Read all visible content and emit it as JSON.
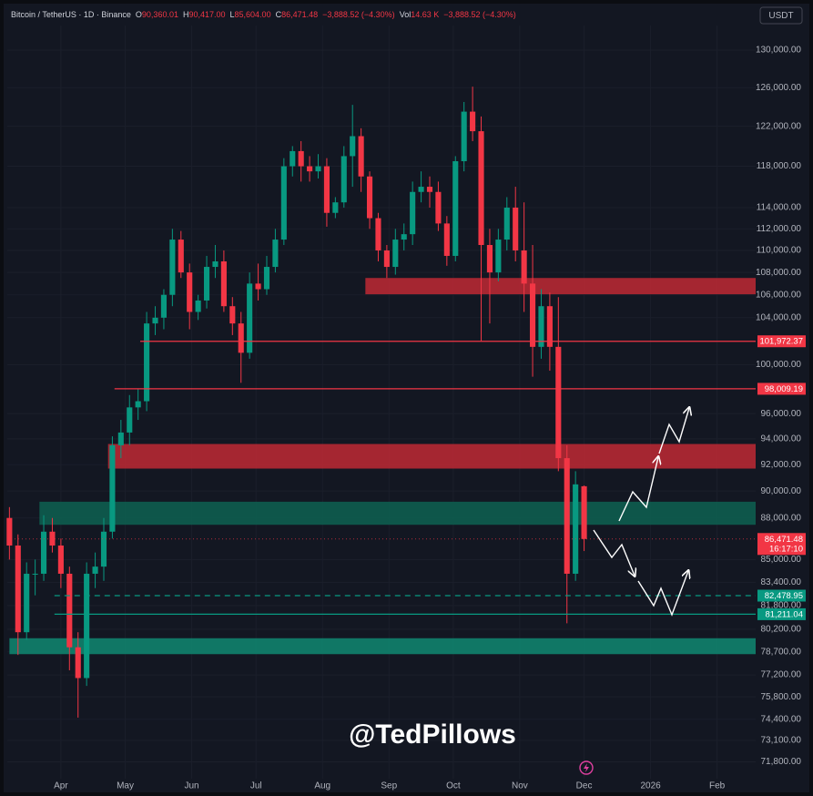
{
  "chart_data": {
    "type": "candlestick",
    "header": {
      "symbol": "Bitcoin / TetherUS · 1D · Binance",
      "fields": [
        {
          "key": "O",
          "text": "90,360.01"
        },
        {
          "key": "H",
          "text": "90,417.00"
        },
        {
          "key": "L",
          "text": "85,604.00"
        },
        {
          "key": "C",
          "text": "86,471.48"
        },
        {
          "text": "−3,888.52 (−4.30%)"
        },
        {
          "key": "Vol",
          "text": "14.63 K"
        },
        {
          "text": "−3,888.52 (−4.30%)"
        }
      ]
    },
    "currency": "USDT",
    "watermark": "@TedPillows",
    "x": [
      66,
      70,
      74,
      78,
      82,
      86,
      90,
      94,
      98,
      102,
      106,
      110,
      114,
      118,
      122,
      126,
      130,
      134,
      138,
      142,
      146,
      150,
      154,
      158,
      162,
      166,
      170,
      174,
      178,
      182,
      186,
      190,
      194,
      198,
      202,
      206,
      210,
      214,
      218,
      222,
      226,
      230,
      234,
      238,
      242,
      246,
      250,
      254,
      258,
      262,
      266,
      270,
      274,
      278,
      282,
      286,
      290,
      294,
      298,
      302,
      306,
      310,
      314,
      318,
      322,
      326,
      330,
      334
    ],
    "open": [
      88000,
      86000,
      80000,
      84000,
      84000,
      87000,
      86000,
      84000,
      79000,
      77000,
      84000,
      84500,
      87000,
      93500,
      94500,
      96500,
      97000,
      103500,
      104000,
      106000,
      111000,
      108000,
      104500,
      105500,
      108500,
      109000,
      105000,
      103500,
      101000,
      107000,
      106500,
      108500,
      111000,
      118000,
      119500,
      118000,
      117500,
      118000,
      113500,
      114500,
      119000,
      121000,
      117000,
      113000,
      110000,
      108500,
      111000,
      111500,
      115500,
      116000,
      115500,
      112500,
      109500,
      118500,
      123500,
      121500,
      110500,
      108000,
      111000,
      114000,
      110000,
      107000,
      101500,
      105000,
      101500,
      92500,
      84000,
      90360.01
    ],
    "high": [
      88800,
      86800,
      84800,
      85000,
      88200,
      88000,
      86500,
      84500,
      80000,
      84800,
      85500,
      88000,
      94200,
      95500,
      97500,
      98000,
      104500,
      105000,
      106500,
      112000,
      111800,
      108800,
      106000,
      109500,
      110500,
      110000,
      105800,
      104500,
      108000,
      108800,
      109500,
      112000,
      118800,
      120000,
      120500,
      119000,
      119200,
      118800,
      115000,
      120000,
      124200,
      121800,
      117500,
      113500,
      110500,
      112000,
      112500,
      116500,
      117500,
      117000,
      116500,
      113200,
      119000,
      124500,
      126100,
      123000,
      112000,
      112000,
      115000,
      116000,
      114500,
      110500,
      106500,
      106200,
      105800,
      93500,
      91500,
      90417
    ],
    "low": [
      85000,
      78500,
      79500,
      82500,
      83500,
      85500,
      83000,
      77500,
      74500,
      76500,
      83000,
      83500,
      86500,
      92500,
      93500,
      95500,
      96200,
      102500,
      103000,
      105000,
      107500,
      103000,
      103800,
      104800,
      107500,
      104500,
      102500,
      98500,
      100500,
      105500,
      106000,
      108000,
      110500,
      117000,
      116500,
      116500,
      116800,
      112200,
      113000,
      114000,
      116000,
      115500,
      112000,
      109000,
      107500,
      107800,
      110000,
      110500,
      114500,
      114000,
      111800,
      108600,
      109000,
      117500,
      120500,
      102000,
      103500,
      107200,
      110000,
      109000,
      104500,
      99000,
      100500,
      99500,
      91500,
      80600,
      83500,
      85604
    ],
    "close": [
      86000,
      80000,
      84000,
      84000,
      87000,
      86000,
      84000,
      79000,
      77000,
      84000,
      84500,
      87000,
      93500,
      94500,
      96500,
      97000,
      103500,
      104000,
      106000,
      111000,
      108000,
      104500,
      105500,
      108500,
      109000,
      105000,
      103500,
      101000,
      107000,
      106500,
      108500,
      111000,
      118000,
      119500,
      118000,
      117500,
      118000,
      113500,
      114500,
      119000,
      121000,
      117000,
      113000,
      110000,
      108500,
      111000,
      111500,
      115500,
      116000,
      115500,
      112500,
      109500,
      118500,
      123500,
      121500,
      110500,
      108000,
      111000,
      114000,
      110000,
      107000,
      101500,
      105000,
      101500,
      92500,
      84000,
      90500,
      86471.48
    ],
    "up_color": "#089981",
    "down_color": "#f23645",
    "xlim": [
      65,
      414
    ],
    "xticks": [
      {
        "value": 90,
        "label": "Apr"
      },
      {
        "value": 120,
        "label": "May"
      },
      {
        "value": 151,
        "label": "Jun"
      },
      {
        "value": 181,
        "label": "Jul"
      },
      {
        "value": 212,
        "label": "Aug"
      },
      {
        "value": 243,
        "label": "Sep"
      },
      {
        "value": 273,
        "label": "Oct"
      },
      {
        "value": 304,
        "label": "Nov"
      },
      {
        "value": 334,
        "label": "Dec"
      },
      {
        "value": 365,
        "label": "2026"
      },
      {
        "value": 396,
        "label": "Feb"
      }
    ],
    "ylim": [
      70800,
      132700
    ],
    "log_scale": true,
    "grid": true,
    "yticks": [
      {
        "value": 130000,
        "label": "130,000.00"
      },
      {
        "value": 126000,
        "label": "126,000.00"
      },
      {
        "value": 122000,
        "label": "122,000.00"
      },
      {
        "value": 118000,
        "label": "118,000.00"
      },
      {
        "value": 114000,
        "label": "114,000.00"
      },
      {
        "value": 112000,
        "label": "112,000.00"
      },
      {
        "value": 110000,
        "label": "110,000.00"
      },
      {
        "value": 108000,
        "label": "108,000.00"
      },
      {
        "value": 106000,
        "label": "106,000.00"
      },
      {
        "value": 104000,
        "label": "104,000.00"
      },
      {
        "value": 100000,
        "label": "100,000.00"
      },
      {
        "value": 96000,
        "label": "96,000.00"
      },
      {
        "value": 94000,
        "label": "94,000.00"
      },
      {
        "value": 92000,
        "label": "92,000.00"
      },
      {
        "value": 90000,
        "label": "90,000.00"
      },
      {
        "value": 88000,
        "label": "88,000.00"
      },
      {
        "value": 85000,
        "label": "85,000.00"
      },
      {
        "value": 83400,
        "label": "83,400.00"
      },
      {
        "value": 81800,
        "label": "81,800.00"
      },
      {
        "value": 80200,
        "label": "80,200.00"
      },
      {
        "value": 78700,
        "label": "78,700.00"
      },
      {
        "value": 77200,
        "label": "77,200.00"
      },
      {
        "value": 75800,
        "label": "75,800.00"
      },
      {
        "value": 74400,
        "label": "74,400.00"
      },
      {
        "value": 73100,
        "label": "73,100.00"
      },
      {
        "value": 71800,
        "label": "71,800.00"
      }
    ],
    "zones": [
      {
        "from": 106050,
        "to": 107500,
        "start": 232,
        "color": "#b22833"
      },
      {
        "from": 91700,
        "to": 93600,
        "start": 112,
        "color": "#b22833"
      },
      {
        "from": 87500,
        "to": 89200,
        "start": 80,
        "color": "#0e5c4e"
      },
      {
        "from": 78550,
        "to": 79600,
        "start": 66,
        "color": "#10806b"
      }
    ],
    "levels": [
      {
        "value": 101972.37,
        "label": "101,972.37",
        "start": 127,
        "color": "#f23645",
        "dashed": false
      },
      {
        "value": 98009.19,
        "label": "98,009.19",
        "start": 115,
        "color": "#f23645",
        "dashed": false
      },
      {
        "value": 82478.95,
        "label": "82,478.95",
        "start": 87,
        "color": "#089981",
        "dashed": true
      },
      {
        "value": 81211.04,
        "label": "81,211.04",
        "start": 87,
        "color": "#089981",
        "dashed": false
      }
    ],
    "last_price": {
      "value": 86471.48,
      "label": "86,471.48",
      "countdown": "16:17:10",
      "color": "#f23645"
    }
  }
}
